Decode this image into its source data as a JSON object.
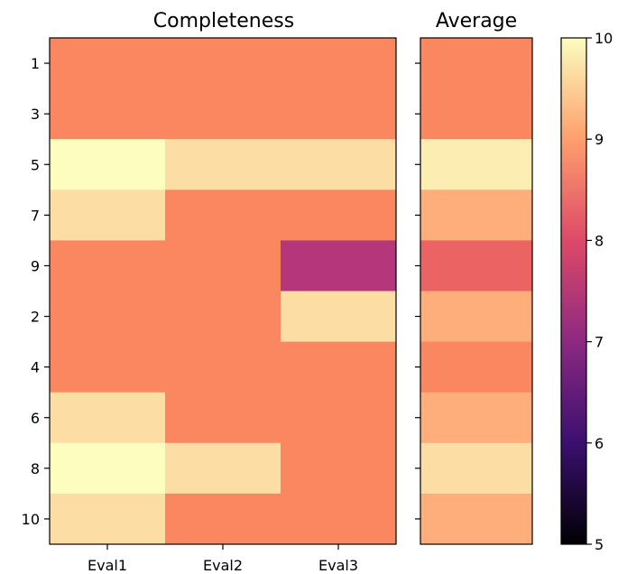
{
  "chart_data": [
    {
      "type": "heatmap",
      "title": "Completeness",
      "categories": [
        "Eval1",
        "Eval2",
        "Eval3"
      ],
      "rows": [
        "1",
        "3",
        "5",
        "7",
        "9",
        "2",
        "4",
        "6",
        "8",
        "10"
      ],
      "values": [
        [
          8,
          8,
          8
        ],
        [
          8,
          8,
          8
        ],
        [
          10,
          9,
          9
        ],
        [
          9,
          8,
          8
        ],
        [
          8,
          8,
          7
        ],
        [
          8,
          8,
          9
        ],
        [
          8,
          8,
          8
        ],
        [
          9,
          8,
          8
        ],
        [
          10,
          9,
          8
        ],
        [
          9,
          8,
          8
        ]
      ],
      "colormap": "magma",
      "vmin": 5,
      "vmax": 10
    },
    {
      "type": "heatmap",
      "title": "Average",
      "rows": [
        "1",
        "3",
        "5",
        "7",
        "9",
        "2",
        "4",
        "6",
        "8",
        "10"
      ],
      "values": [
        8,
        8,
        9.33,
        8.33,
        7.67,
        8.33,
        8,
        8.33,
        9,
        8.33
      ],
      "colormap": "magma",
      "vmin": 5,
      "vmax": 10
    }
  ],
  "colorbar": {
    "ticks": [
      "5",
      "6",
      "7",
      "8",
      "9",
      "10"
    ],
    "range": [
      5,
      10
    ]
  }
}
